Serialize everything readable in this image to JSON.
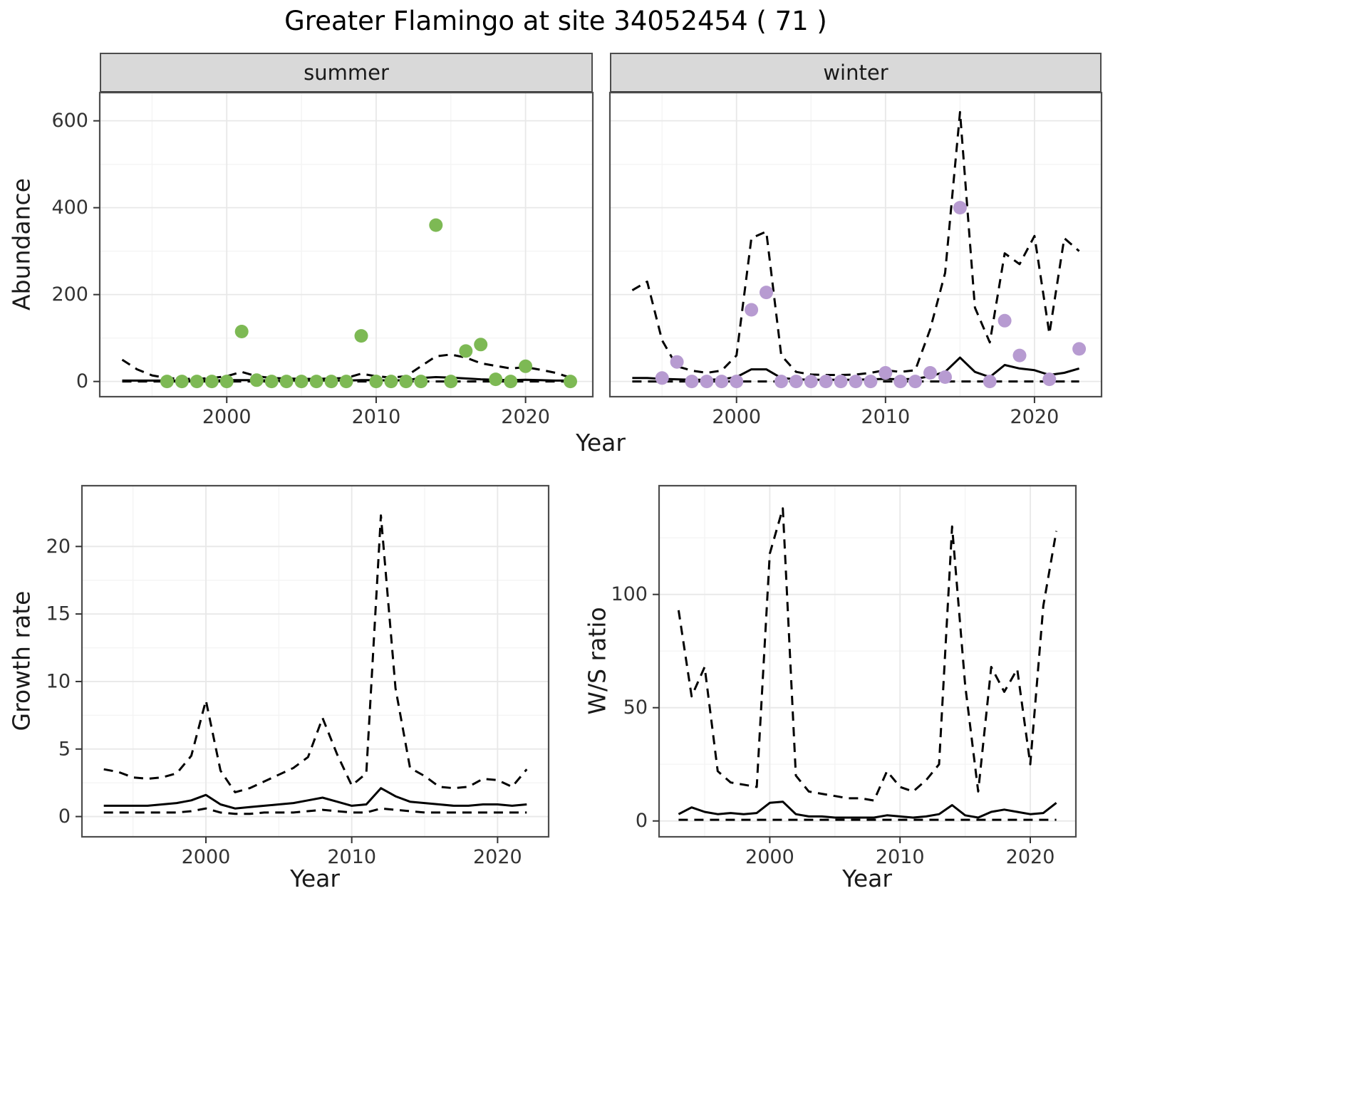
{
  "title": "Greater Flamingo at site 34052454 ( 71 )",
  "facets": {
    "summer": "summer",
    "winter": "winter"
  },
  "axis_labels": {
    "abundance": "Abundance",
    "year": "Year",
    "growth_rate": "Growth rate",
    "ws_ratio": "W/S ratio"
  },
  "colors": {
    "summer_point": "#7db954",
    "winter_point": "#b79bd1",
    "line": "#000000",
    "grid_major": "#e8e8e8",
    "grid_minor": "#f4f4f4",
    "panel_border": "#4d4d4d",
    "tick_text": "#333333"
  },
  "chart_data": [
    {
      "id": "abundance-summer",
      "type": "scatter",
      "facet": "summer",
      "xlabel": "Year",
      "ylabel": "Abundance",
      "xlim": [
        1991.5,
        2024.5
      ],
      "ylim": [
        -35,
        665
      ],
      "xticks": [
        2000,
        2010,
        2020
      ],
      "xminor": [
        1995,
        2005,
        2015
      ],
      "yticks": [
        0,
        200,
        400,
        600
      ],
      "yminor": [
        100,
        300,
        500
      ],
      "points": {
        "color_key": "summer_point",
        "x": [
          1996,
          1997,
          1998,
          1999,
          2000,
          2001,
          2002,
          2003,
          2004,
          2005,
          2006,
          2007,
          2008,
          2009,
          2010,
          2011,
          2012,
          2013,
          2014,
          2015,
          2016,
          2017,
          2018,
          2019,
          2020,
          2023
        ],
        "y": [
          0,
          0,
          0,
          0,
          0,
          115,
          3,
          0,
          0,
          0,
          0,
          0,
          0,
          105,
          0,
          0,
          0,
          0,
          360,
          0,
          70,
          85,
          5,
          0,
          35,
          0
        ]
      },
      "series": [
        {
          "name": "fit",
          "style": "solid",
          "x": [
            1993,
            1994,
            1995,
            1996,
            1997,
            1998,
            1999,
            2000,
            2001,
            2002,
            2003,
            2004,
            2005,
            2006,
            2007,
            2008,
            2009,
            2010,
            2011,
            2012,
            2013,
            2014,
            2015,
            2016,
            2017,
            2018,
            2019,
            2020,
            2021,
            2022,
            2023
          ],
          "y": [
            2,
            2,
            2,
            2,
            2,
            2,
            2,
            3,
            3,
            3,
            2,
            2,
            2,
            2,
            2,
            2,
            3,
            3,
            2,
            3,
            8,
            10,
            9,
            7,
            5,
            4,
            3,
            4,
            3,
            2,
            2
          ]
        },
        {
          "name": "upper",
          "style": "dashed",
          "x": [
            1993,
            1994,
            1995,
            1996,
            1997,
            1998,
            1999,
            2000,
            2001,
            2002,
            2003,
            2004,
            2005,
            2006,
            2007,
            2008,
            2009,
            2010,
            2011,
            2012,
            2013,
            2014,
            2015,
            2016,
            2017,
            2018,
            2019,
            2020,
            2021,
            2022,
            2023
          ],
          "y": [
            50,
            28,
            14,
            8,
            6,
            6,
            8,
            12,
            22,
            12,
            8,
            7,
            6,
            6,
            7,
            8,
            18,
            12,
            9,
            12,
            35,
            58,
            62,
            55,
            42,
            36,
            30,
            33,
            27,
            20,
            9
          ]
        },
        {
          "name": "lower",
          "style": "dashed",
          "x": [
            1993,
            1994,
            1995,
            1996,
            1997,
            1998,
            1999,
            2000,
            2001,
            2002,
            2003,
            2004,
            2005,
            2006,
            2007,
            2008,
            2009,
            2010,
            2011,
            2012,
            2013,
            2014,
            2015,
            2016,
            2017,
            2018,
            2019,
            2020,
            2021,
            2022,
            2023
          ],
          "y": [
            0,
            0,
            0,
            0,
            0,
            0,
            0,
            0,
            0,
            0,
            0,
            0,
            0,
            0,
            0,
            0,
            0,
            0,
            0,
            0,
            0,
            0,
            0,
            0,
            0,
            0,
            0,
            0,
            0,
            0,
            0
          ]
        }
      ]
    },
    {
      "id": "abundance-winter",
      "type": "scatter",
      "facet": "winter",
      "xlabel": "Year",
      "ylabel": "Abundance",
      "xlim": [
        1991.5,
        2024.5
      ],
      "ylim": [
        -35,
        665
      ],
      "xticks": [
        2000,
        2010,
        2020
      ],
      "xminor": [
        1995,
        2005,
        2015
      ],
      "yticks": [
        0,
        200,
        400,
        600
      ],
      "yminor": [
        100,
        300,
        500
      ],
      "points": {
        "color_key": "winter_point",
        "x": [
          1995,
          1996,
          1997,
          1998,
          1999,
          2000,
          2001,
          2002,
          2003,
          2004,
          2005,
          2006,
          2007,
          2008,
          2009,
          2010,
          2011,
          2012,
          2013,
          2014,
          2015,
          2017,
          2018,
          2019,
          2021,
          2023
        ],
        "y": [
          8,
          45,
          0,
          0,
          0,
          0,
          165,
          205,
          0,
          0,
          0,
          0,
          0,
          0,
          0,
          20,
          0,
          0,
          20,
          10,
          400,
          0,
          140,
          60,
          5,
          75
        ]
      },
      "series": [
        {
          "name": "fit",
          "style": "solid",
          "x": [
            1993,
            1994,
            1995,
            1996,
            1997,
            1998,
            1999,
            2000,
            2001,
            2002,
            2003,
            2004,
            2005,
            2006,
            2007,
            2008,
            2009,
            2010,
            2011,
            2012,
            2013,
            2014,
            2015,
            2016,
            2017,
            2018,
            2019,
            2020,
            2021,
            2022,
            2023
          ],
          "y": [
            8,
            8,
            6,
            5,
            4,
            4,
            5,
            10,
            28,
            28,
            8,
            5,
            4,
            4,
            4,
            4,
            5,
            6,
            5,
            6,
            12,
            22,
            55,
            22,
            10,
            38,
            30,
            26,
            15,
            20,
            30
          ]
        },
        {
          "name": "upper",
          "style": "dashed",
          "x": [
            1993,
            1994,
            1995,
            1996,
            1997,
            1998,
            1999,
            2000,
            2001,
            2002,
            2003,
            2004,
            2005,
            2006,
            2007,
            2008,
            2009,
            2010,
            2011,
            2012,
            2013,
            2014,
            2015,
            2016,
            2017,
            2018,
            2019,
            2020,
            2021,
            2022,
            2023
          ],
          "y": [
            210,
            230,
            95,
            35,
            25,
            20,
            25,
            60,
            330,
            345,
            60,
            22,
            16,
            15,
            15,
            16,
            20,
            26,
            22,
            26,
            120,
            250,
            620,
            170,
            90,
            295,
            270,
            335,
            110,
            330,
            300
          ]
        },
        {
          "name": "lower",
          "style": "dashed",
          "x": [
            1993,
            1994,
            1995,
            1996,
            1997,
            1998,
            1999,
            2000,
            2001,
            2002,
            2003,
            2004,
            2005,
            2006,
            2007,
            2008,
            2009,
            2010,
            2011,
            2012,
            2013,
            2014,
            2015,
            2016,
            2017,
            2018,
            2019,
            2020,
            2021,
            2022,
            2023
          ],
          "y": [
            0,
            0,
            0,
            0,
            0,
            0,
            0,
            0,
            0,
            0,
            0,
            0,
            0,
            0,
            0,
            0,
            0,
            0,
            0,
            0,
            0,
            0,
            0,
            0,
            0,
            0,
            0,
            0,
            0,
            0,
            0
          ]
        }
      ]
    },
    {
      "id": "growth-rate",
      "type": "line",
      "xlabel": "Year",
      "ylabel": "Growth rate",
      "xlim": [
        1991.5,
        2023.5
      ],
      "ylim": [
        -1.5,
        24.5
      ],
      "xticks": [
        2000,
        2010,
        2020
      ],
      "xminor": [
        1995,
        2005,
        2015
      ],
      "yticks": [
        0,
        5,
        10,
        15,
        20
      ],
      "yminor": [
        2.5,
        7.5,
        12.5,
        17.5
      ],
      "series": [
        {
          "name": "fit",
          "style": "solid",
          "x": [
            1993,
            1994,
            1995,
            1996,
            1997,
            1998,
            1999,
            2000,
            2001,
            2002,
            2003,
            2004,
            2005,
            2006,
            2007,
            2008,
            2009,
            2010,
            2011,
            2012,
            2013,
            2014,
            2015,
            2016,
            2017,
            2018,
            2019,
            2020,
            2021,
            2022
          ],
          "y": [
            0.8,
            0.8,
            0.8,
            0.8,
            0.9,
            1.0,
            1.2,
            1.6,
            0.9,
            0.6,
            0.7,
            0.8,
            0.9,
            1.0,
            1.2,
            1.4,
            1.1,
            0.8,
            0.9,
            2.1,
            1.5,
            1.1,
            1.0,
            0.9,
            0.8,
            0.8,
            0.9,
            0.9,
            0.8,
            0.9
          ]
        },
        {
          "name": "upper",
          "style": "dashed",
          "x": [
            1993,
            1994,
            1995,
            1996,
            1997,
            1998,
            1999,
            2000,
            2001,
            2002,
            2003,
            2004,
            2005,
            2006,
            2007,
            2008,
            2009,
            2010,
            2011,
            2012,
            2013,
            2014,
            2015,
            2016,
            2017,
            2018,
            2019,
            2020,
            2021,
            2022
          ],
          "y": [
            3.5,
            3.3,
            2.9,
            2.8,
            2.9,
            3.2,
            4.5,
            8.6,
            3.4,
            1.8,
            2.1,
            2.6,
            3.1,
            3.6,
            4.4,
            7.3,
            4.6,
            2.3,
            3.2,
            22.3,
            9.5,
            3.6,
            3.0,
            2.2,
            2.1,
            2.2,
            2.8,
            2.7,
            2.2,
            3.5
          ]
        },
        {
          "name": "lower",
          "style": "dashed",
          "x": [
            1993,
            1994,
            1995,
            1996,
            1997,
            1998,
            1999,
            2000,
            2001,
            2002,
            2003,
            2004,
            2005,
            2006,
            2007,
            2008,
            2009,
            2010,
            2011,
            2012,
            2013,
            2014,
            2015,
            2016,
            2017,
            2018,
            2019,
            2020,
            2021,
            2022
          ],
          "y": [
            0.3,
            0.3,
            0.3,
            0.3,
            0.3,
            0.3,
            0.4,
            0.6,
            0.3,
            0.2,
            0.2,
            0.3,
            0.3,
            0.3,
            0.4,
            0.5,
            0.4,
            0.3,
            0.3,
            0.6,
            0.5,
            0.4,
            0.3,
            0.3,
            0.3,
            0.3,
            0.3,
            0.3,
            0.3,
            0.3
          ]
        }
      ]
    },
    {
      "id": "ws-ratio",
      "type": "line",
      "xlabel": "Year",
      "ylabel": "W/S ratio",
      "xlim": [
        1991.5,
        2023.5
      ],
      "ylim": [
        -7,
        148
      ],
      "xticks": [
        2000,
        2010,
        2020
      ],
      "xminor": [
        1995,
        2005,
        2015
      ],
      "yticks": [
        0,
        50,
        100
      ],
      "yminor": [
        25,
        75,
        125
      ],
      "series": [
        {
          "name": "fit",
          "style": "solid",
          "x": [
            1993,
            1994,
            1995,
            1996,
            1997,
            1998,
            1999,
            2000,
            2001,
            2002,
            2003,
            2004,
            2005,
            2006,
            2007,
            2008,
            2009,
            2010,
            2011,
            2012,
            2013,
            2014,
            2015,
            2016,
            2017,
            2018,
            2019,
            2020,
            2021,
            2022
          ],
          "y": [
            3,
            6,
            4,
            3,
            3.5,
            3,
            3.5,
            8,
            8.5,
            3,
            2,
            2,
            1.5,
            1.5,
            1.5,
            1.5,
            2.5,
            2,
            1.5,
            2,
            3,
            7,
            2.5,
            1.5,
            4,
            5,
            4,
            3,
            3.5,
            8
          ]
        },
        {
          "name": "upper",
          "style": "dashed",
          "x": [
            1993,
            1994,
            1995,
            1996,
            1997,
            1998,
            1999,
            2000,
            2001,
            2002,
            2003,
            2004,
            2005,
            2006,
            2007,
            2008,
            2009,
            2010,
            2011,
            2012,
            2013,
            2014,
            2015,
            2016,
            2017,
            2018,
            2019,
            2020,
            2021,
            2022
          ],
          "y": [
            93,
            55,
            68,
            22,
            17,
            16,
            15,
            118,
            138,
            20,
            13,
            12,
            11,
            10,
            10,
            9,
            22,
            15,
            13,
            18,
            25,
            130,
            60,
            13,
            68,
            57,
            67,
            25,
            95,
            128
          ]
        },
        {
          "name": "lower",
          "style": "dashed",
          "x": [
            1993,
            1994,
            1995,
            1996,
            1997,
            1998,
            1999,
            2000,
            2001,
            2002,
            2003,
            2004,
            2005,
            2006,
            2007,
            2008,
            2009,
            2010,
            2011,
            2012,
            2013,
            2014,
            2015,
            2016,
            2017,
            2018,
            2019,
            2020,
            2021,
            2022
          ],
          "y": [
            0.5,
            0.5,
            0.5,
            0.5,
            0.5,
            0.5,
            0.5,
            0.5,
            0.5,
            0.5,
            0.5,
            0.5,
            0.5,
            0.5,
            0.5,
            0.5,
            0.5,
            0.5,
            0.5,
            0.5,
            0.5,
            0.5,
            0.5,
            0.5,
            0.5,
            0.5,
            0.5,
            0.5,
            0.5,
            0.5
          ]
        }
      ]
    }
  ]
}
